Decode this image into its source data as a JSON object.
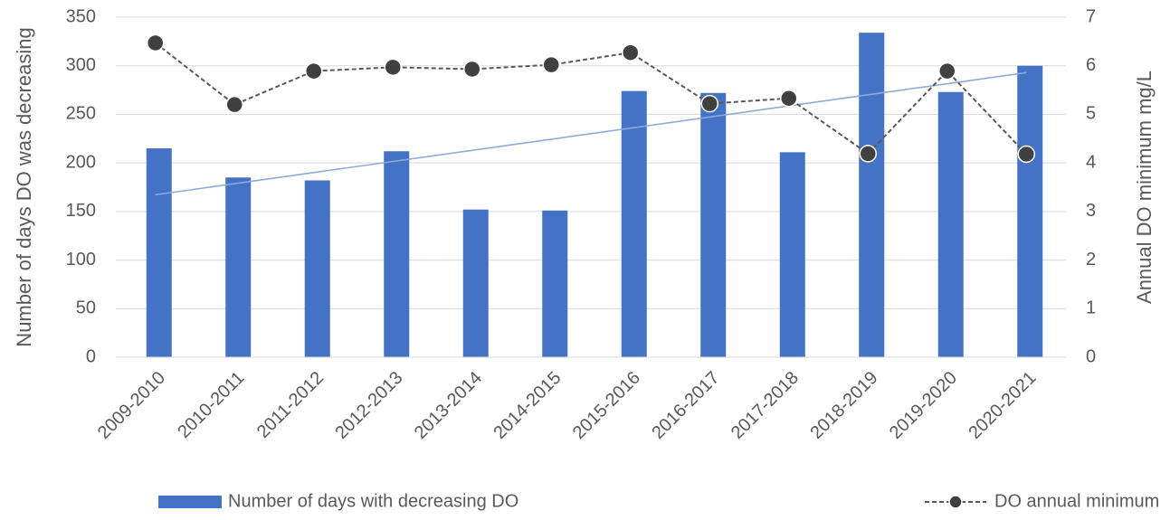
{
  "chart_data": {
    "type": "bar-line",
    "categories": [
      "2009-2010",
      "2010-2011",
      "2011-2012",
      "2012-2013",
      "2013-2014",
      "2014-2015",
      "2015-2016",
      "2016-2017",
      "2017-2018",
      "2018-2019",
      "2019-2020",
      "2020-2021"
    ],
    "series": [
      {
        "name": "Number of days with decreasing DO",
        "type": "bar",
        "color": "#4472c4",
        "values": [
          215,
          185,
          182,
          212,
          152,
          151,
          274,
          272,
          211,
          334,
          273,
          300
        ],
        "trendline": true,
        "trendline_color": "#8eaadb"
      },
      {
        "name": "DO annual minimum",
        "type": "line",
        "axis": "y2",
        "color": "#595959",
        "marker_color": "#404040",
        "dashed": true,
        "values": [
          6.47,
          5.2,
          5.89,
          5.97,
          5.93,
          6.02,
          6.27,
          5.22,
          5.33,
          4.19,
          5.89,
          4.18
        ]
      }
    ],
    "y_label": "Number of days DO was decreasing",
    "y2_label": "Annual DO minimum mg/L",
    "ylim": [
      0,
      350
    ],
    "yticks": [
      0,
      50,
      100,
      150,
      200,
      250,
      300,
      350
    ],
    "y2lim": [
      0,
      7
    ],
    "y2ticks": [
      0,
      1,
      2,
      3,
      4,
      5,
      6,
      7
    ],
    "grid": true,
    "legend": "bottom"
  }
}
